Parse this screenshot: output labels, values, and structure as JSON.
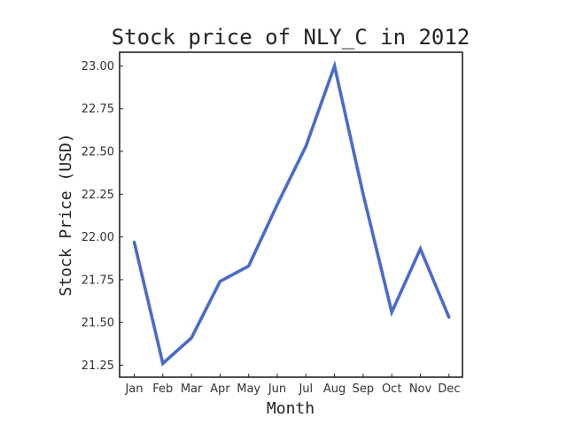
{
  "chart_data": {
    "type": "line",
    "title": "Stock price of NLY_C in 2012",
    "xlabel": "Month",
    "ylabel": "Stock Price (USD)",
    "categories": [
      "Jan",
      "Feb",
      "Mar",
      "Apr",
      "May",
      "Jun",
      "Jul",
      "Aug",
      "Sep",
      "Oct",
      "Nov",
      "Dec"
    ],
    "series": [
      {
        "values": [
          21.97,
          21.26,
          21.41,
          21.74,
          21.83,
          22.19,
          22.53,
          23.0,
          22.25,
          21.56,
          21.93,
          21.53
        ],
        "color": "#4a6bcb"
      }
    ],
    "ylim": [
      21.18,
      23.08
    ],
    "yticks": [
      "21.25",
      "21.50",
      "21.75",
      "22.00",
      "22.25",
      "22.50",
      "22.75",
      "23.00"
    ],
    "grid": false,
    "legend": "none"
  }
}
